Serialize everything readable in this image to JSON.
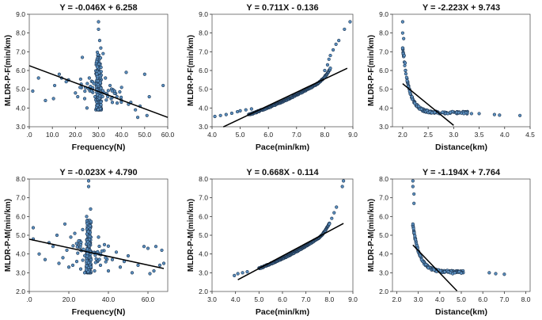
{
  "chart_data": [
    {
      "type": "scatter",
      "title": "Y = -0.046X + 6.258",
      "xlabel": "Frequency(N)",
      "ylabel": "MLDR-P-F(min/km)",
      "xlim": [
        0,
        60
      ],
      "ylim": [
        3.0,
        9.0
      ],
      "xticks": [
        ".0",
        "10.0",
        "20.0",
        "30.0",
        "40.0",
        "50.0",
        "60.0"
      ],
      "yticks": [
        "3.0",
        "4.0",
        "5.0",
        "6.0",
        "7.0",
        "8.0",
        "9.0"
      ],
      "fit": {
        "slope": -0.046,
        "intercept": 6.258,
        "x_range": [
          0,
          60
        ]
      },
      "pattern": "freq",
      "center": 30.0,
      "center_ymin": 3.9,
      "center_ymax": 7.0,
      "noise_sd": 0.45,
      "n_generated": 170,
      "points": [
        [
          1.5,
          4.9
        ],
        [
          4,
          5.6
        ],
        [
          7,
          4.4
        ],
        [
          10.5,
          4.5
        ],
        [
          11,
          5.2
        ],
        [
          13,
          5.8
        ],
        [
          14,
          5.6
        ],
        [
          16,
          5.4
        ],
        [
          17,
          5.5
        ],
        [
          20,
          4.8
        ],
        [
          21,
          4.6
        ],
        [
          22,
          5.1
        ],
        [
          23,
          6.7
        ],
        [
          24,
          4.5
        ],
        [
          25,
          4.0
        ],
        [
          26,
          5.6
        ],
        [
          27,
          4.9
        ],
        [
          28,
          5.3
        ],
        [
          28.5,
          4.6
        ],
        [
          30,
          8.6
        ],
        [
          30,
          8.2
        ],
        [
          30.5,
          7.6
        ],
        [
          31,
          7.2
        ],
        [
          32,
          6.9
        ],
        [
          33,
          5.6
        ],
        [
          34,
          4.6
        ],
        [
          35,
          5.2
        ],
        [
          36,
          4.3
        ],
        [
          37,
          4.9
        ],
        [
          38,
          4.6
        ],
        [
          40,
          5.1
        ],
        [
          42,
          5.9
        ],
        [
          43,
          4.2
        ],
        [
          44,
          4.3
        ],
        [
          46,
          3.9
        ],
        [
          47,
          3.5
        ],
        [
          48,
          4.1
        ],
        [
          50,
          5.8
        ],
        [
          51,
          3.6
        ],
        [
          52,
          4.6
        ],
        [
          58,
          5.2
        ]
      ]
    },
    {
      "type": "scatter",
      "title": "Y = 0.711X - 0.136",
      "xlabel": "Pace(min/km)",
      "ylabel": "MLDR-P-F(min/km)",
      "xlim": [
        4.0,
        9.0
      ],
      "ylim": [
        3.0,
        9.0
      ],
      "xticks": [
        "4.0",
        "5.0",
        "6.0",
        "7.0",
        "8.0",
        "9.0"
      ],
      "yticks": [
        "3.0",
        "4.0",
        "5.0",
        "6.0",
        "7.0",
        "8.0",
        "9.0"
      ],
      "fit": {
        "slope": 0.711,
        "intercept": -0.136,
        "x_range": [
          4.4,
          8.8
        ]
      },
      "pattern": "pace",
      "n_generated": 230,
      "points": [
        [
          4.1,
          3.55
        ],
        [
          4.3,
          3.6
        ],
        [
          4.5,
          3.65
        ],
        [
          4.7,
          3.72
        ],
        [
          4.9,
          3.8
        ],
        [
          5.0,
          3.85
        ],
        [
          5.2,
          3.9
        ],
        [
          5.4,
          3.95
        ],
        [
          8.0,
          6.0
        ],
        [
          8.1,
          6.3
        ],
        [
          8.15,
          6.6
        ],
        [
          8.2,
          6.8
        ],
        [
          8.3,
          7.1
        ],
        [
          8.4,
          7.4
        ],
        [
          8.5,
          7.6
        ],
        [
          8.7,
          8.2
        ],
        [
          8.9,
          8.6
        ]
      ]
    },
    {
      "type": "scatter",
      "title": "Y = -2.223X + 9.743",
      "xlabel": "Distance(km)",
      "ylabel": "MLDR-P-F(min/km)",
      "xlim": [
        1.8,
        4.5
      ],
      "ylim": [
        3.0,
        9.0
      ],
      "xticks": [
        "2.0",
        "2.5",
        "3.0",
        "3.5",
        "4.0",
        "4.5"
      ],
      "yticks": [
        "3.0",
        "4.0",
        "5.0",
        "6.0",
        "7.0",
        "8.0",
        "9.0"
      ],
      "fit": {
        "slope": -2.223,
        "intercept": 9.743,
        "x_range": [
          2.0,
          3.0
        ]
      },
      "pattern": "dist",
      "curve": {
        "x0": 2.0,
        "a": 3.5,
        "k": 8.0,
        "b": 3.75
      },
      "n_generated": 150,
      "points": [
        [
          2.0,
          8.6
        ],
        [
          2.0,
          8.0
        ],
        [
          2.02,
          7.7
        ],
        [
          2.0,
          7.2
        ],
        [
          2.03,
          6.8
        ],
        [
          2.05,
          6.4
        ],
        [
          3.1,
          3.75
        ],
        [
          3.2,
          3.7
        ],
        [
          3.35,
          3.7
        ],
        [
          3.5,
          3.7
        ],
        [
          3.8,
          3.65
        ],
        [
          3.9,
          3.62
        ],
        [
          4.3,
          3.6
        ]
      ]
    },
    {
      "type": "scatter",
      "title": "Y = -0.023X + 4.790",
      "xlabel": "Frequency(N)",
      "ylabel": "MLDR-P-M(min/km)",
      "xlim": [
        0,
        70
      ],
      "ylim": [
        2.0,
        8.0
      ],
      "xticks": [
        ".0",
        "20.0",
        "40.0",
        "60.0"
      ],
      "yticks": [
        "2.0",
        "3.0",
        "4.0",
        "5.0",
        "6.0",
        "7.0",
        "8.0"
      ],
      "fit": {
        "slope": -0.023,
        "intercept": 4.79,
        "x_range": [
          0,
          68
        ]
      },
      "pattern": "freq",
      "center": 30.0,
      "center_ymin": 3.0,
      "center_ymax": 5.8,
      "noise_sd": 0.45,
      "n_generated": 200,
      "points": [
        [
          2,
          5.4
        ],
        [
          2,
          4.8
        ],
        [
          5,
          4.0
        ],
        [
          8,
          3.7
        ],
        [
          10,
          4.6
        ],
        [
          12,
          4.4
        ],
        [
          14,
          5.0
        ],
        [
          15,
          3.5
        ],
        [
          17,
          3.8
        ],
        [
          18,
          5.6
        ],
        [
          19,
          4.2
        ],
        [
          20,
          3.3
        ],
        [
          21,
          4.9
        ],
        [
          22,
          3.4
        ],
        [
          23,
          5.1
        ],
        [
          24,
          3.6
        ],
        [
          25,
          4.7
        ],
        [
          26,
          3.2
        ],
        [
          27,
          5.3
        ],
        [
          28,
          3.0
        ],
        [
          29,
          6.0
        ],
        [
          30,
          7.9
        ],
        [
          30,
          7.6
        ],
        [
          31,
          6.4
        ],
        [
          33,
          3.1
        ],
        [
          35,
          4.9
        ],
        [
          36,
          3.4
        ],
        [
          38,
          4.5
        ],
        [
          40,
          3.1
        ],
        [
          42,
          3.7
        ],
        [
          44,
          4.1
        ],
        [
          46,
          3.3
        ],
        [
          48,
          3.6
        ],
        [
          50,
          3.9
        ],
        [
          52,
          3.0
        ],
        [
          55,
          3.4
        ],
        [
          58,
          4.4
        ],
        [
          60,
          4.3
        ],
        [
          61,
          2.95
        ],
        [
          63,
          3.1
        ],
        [
          64,
          4.4
        ],
        [
          66,
          3.4
        ],
        [
          67,
          4.2
        ],
        [
          68,
          3.5
        ]
      ]
    },
    {
      "type": "scatter",
      "title": "Y = 0.668X - 0.114",
      "xlabel": "Pace(min/km)",
      "ylabel": "MLDR-P-M(min/km)",
      "xlim": [
        3.0,
        9.0
      ],
      "ylim": [
        2.0,
        8.0
      ],
      "xticks": [
        "3.0",
        "4.0",
        "5.0",
        "6.0",
        "7.0",
        "8.0",
        "9.0"
      ],
      "yticks": [
        "2.0",
        "3.0",
        "4.0",
        "5.0",
        "6.0",
        "7.0",
        "8.0"
      ],
      "fit": {
        "slope": 0.668,
        "intercept": -0.114,
        "x_range": [
          4.1,
          8.6
        ]
      },
      "pattern": "pace",
      "n_generated": 230,
      "points": [
        [
          3.95,
          2.85
        ],
        [
          4.1,
          2.95
        ],
        [
          4.3,
          3.0
        ],
        [
          4.5,
          3.05
        ],
        [
          8.0,
          5.6
        ],
        [
          8.1,
          5.9
        ],
        [
          8.2,
          6.2
        ],
        [
          8.3,
          6.5
        ],
        [
          8.55,
          7.6
        ],
        [
          8.6,
          7.9
        ]
      ]
    },
    {
      "type": "scatter",
      "title": "Y = -1.194X + 7.764",
      "xlabel": "Distance(km)",
      "ylabel": "MLDR-P-M(min/km)",
      "xlim": [
        1.8,
        8.2
      ],
      "ylim": [
        2.0,
        8.0
      ],
      "xticks": [
        "2.0",
        "3.0",
        "4.0",
        "5.0",
        "6.0",
        "7.0",
        "8.0"
      ],
      "yticks": [
        "2.0",
        "3.0",
        "4.0",
        "5.0",
        "6.0",
        "7.0",
        "8.0"
      ],
      "fit": {
        "slope": -1.194,
        "intercept": 7.764,
        "x_range": [
          2.75,
          4.8
        ]
      },
      "pattern": "dist",
      "curve": {
        "x0": 2.75,
        "a": 2.5,
        "k": 3.2,
        "b": 3.05
      },
      "n_generated": 150,
      "points": [
        [
          2.75,
          7.9
        ],
        [
          2.75,
          7.6
        ],
        [
          2.8,
          7.2
        ],
        [
          2.8,
          6.7
        ],
        [
          4.4,
          3.05
        ],
        [
          4.5,
          3.0
        ],
        [
          4.6,
          2.95
        ],
        [
          4.7,
          3.0
        ],
        [
          5.0,
          2.98
        ],
        [
          6.3,
          3.0
        ],
        [
          6.6,
          2.95
        ],
        [
          7.0,
          2.92
        ]
      ]
    }
  ]
}
